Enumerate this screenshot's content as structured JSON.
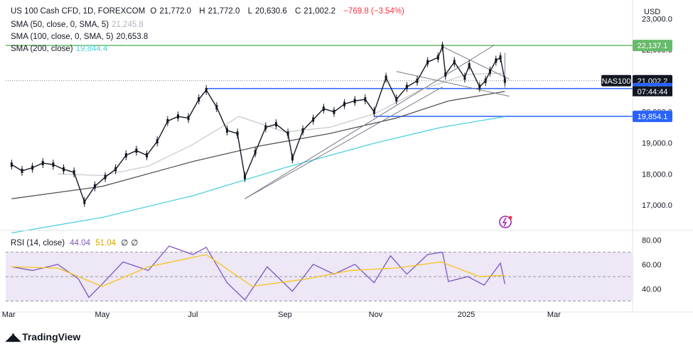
{
  "header": {
    "symbol_title": "US 100 Cash CFD, 1D, FOREXCOM",
    "ohlc": {
      "o_label": "O",
      "o": "21,772.0",
      "h_label": "H",
      "h": "21,772.0",
      "l_label": "L",
      "l": "20,630.6",
      "c_label": "C",
      "c": "21,002.2",
      "change": "−769.8 (−3.54%)"
    },
    "currency": "USD"
  },
  "indicators": [
    {
      "label": "SMA (50, close, 0, SMA, 5)",
      "value": "21,245.8",
      "color": "#b2b5be"
    },
    {
      "label": "SMA (100, close, 0, SMA, 5)",
      "value": "20,653.8",
      "color": "#555555"
    },
    {
      "label": "SMA (200, close)",
      "value": "19,844.4",
      "color": "#4dd0e1"
    }
  ],
  "rsi": {
    "label": "RSI (14, close)",
    "value": "44.04",
    "ma_value": "51.04",
    "extra1": "∅",
    "extra2": "∅",
    "line_color": "#7e57c2",
    "ma_color": "#f5c518"
  },
  "brand": {
    "name": "TradingView",
    "symbol_tag": "NAS100",
    "countdown": "07:44:44"
  },
  "colors": {
    "up": "#131722",
    "down": "#131722",
    "resistance": "#66bb6a",
    "support": "#2962ff",
    "sma200": "#4dd0e1",
    "rsi_band": "#ede7f6"
  },
  "chart_data": [
    {
      "type": "line",
      "title": "US 100 Cash CFD, 1D, FOREXCOM",
      "x_ticks": [
        "Mar",
        "May",
        "Jul",
        "Sep",
        "Nov",
        "2025",
        "Mar"
      ],
      "y_ticks": [
        "17,000.0",
        "18,000.0",
        "19,000.0",
        "20,000.0",
        "22,000.0",
        "23,000.0"
      ],
      "ylim": [
        16180,
        23600
      ],
      "price_labels": [
        {
          "value": 22137.1,
          "text": "22,137.1",
          "color": "#66bb6a"
        },
        {
          "value": 21002.2,
          "text": "21,002.2",
          "color": "#131722"
        },
        {
          "value": 20750.0,
          "text": "20,750.0",
          "color": "#2962ff"
        },
        {
          "value": 19854.1,
          "text": "19,854.1",
          "color": "#2962ff"
        }
      ],
      "horizontal_levels": [
        {
          "name": "resistance",
          "value": 22137.1
        },
        {
          "name": "support_high",
          "value": 20750.0
        },
        {
          "name": "support_low",
          "value": 19854.1
        },
        {
          "name": "last",
          "value": 21002.2
        }
      ],
      "series": [
        {
          "values": [
            {
              "d": "2024-03-01",
              "v": 18300
            },
            {
              "d": "2024-03-08",
              "v": 18100
            },
            {
              "d": "2024-03-15",
              "v": 18200
            },
            {
              "d": "2024-03-22",
              "v": 18350
            },
            {
              "d": "2024-03-29",
              "v": 18300
            },
            {
              "d": "2024-04-05",
              "v": 18150
            },
            {
              "d": "2024-04-12",
              "v": 18050
            },
            {
              "d": "2024-04-19",
              "v": 17100
            },
            {
              "d": "2024-04-26",
              "v": 17600
            },
            {
              "d": "2024-05-03",
              "v": 17900
            },
            {
              "d": "2024-05-10",
              "v": 18150
            },
            {
              "d": "2024-05-17",
              "v": 18600
            },
            {
              "d": "2024-05-24",
              "v": 18750
            },
            {
              "d": "2024-05-31",
              "v": 18600
            },
            {
              "d": "2024-06-07",
              "v": 19050
            },
            {
              "d": "2024-06-14",
              "v": 19700
            },
            {
              "d": "2024-06-21",
              "v": 19850
            },
            {
              "d": "2024-06-28",
              "v": 19800
            },
            {
              "d": "2024-07-05",
              "v": 20400
            },
            {
              "d": "2024-07-10",
              "v": 20700
            },
            {
              "d": "2024-07-17",
              "v": 20150
            },
            {
              "d": "2024-07-24",
              "v": 19400
            },
            {
              "d": "2024-07-31",
              "v": 19300
            },
            {
              "d": "2024-08-05",
              "v": 17900
            },
            {
              "d": "2024-08-12",
              "v": 18700
            },
            {
              "d": "2024-08-19",
              "v": 19500
            },
            {
              "d": "2024-08-26",
              "v": 19600
            },
            {
              "d": "2024-09-03",
              "v": 19300
            },
            {
              "d": "2024-09-06",
              "v": 18500
            },
            {
              "d": "2024-09-13",
              "v": 19400
            },
            {
              "d": "2024-09-20",
              "v": 19750
            },
            {
              "d": "2024-09-27",
              "v": 20100
            },
            {
              "d": "2024-10-04",
              "v": 20000
            },
            {
              "d": "2024-10-11",
              "v": 20250
            },
            {
              "d": "2024-10-18",
              "v": 20350
            },
            {
              "d": "2024-10-25",
              "v": 20400
            },
            {
              "d": "2024-10-31",
              "v": 20000
            },
            {
              "d": "2024-11-08",
              "v": 21100
            },
            {
              "d": "2024-11-15",
              "v": 20400
            },
            {
              "d": "2024-11-22",
              "v": 20800
            },
            {
              "d": "2024-11-29",
              "v": 21000
            },
            {
              "d": "2024-12-06",
              "v": 21600
            },
            {
              "d": "2024-12-13",
              "v": 21750
            },
            {
              "d": "2024-12-16",
              "v": 22100
            },
            {
              "d": "2024-12-18",
              "v": 21200
            },
            {
              "d": "2024-12-24",
              "v": 21600
            },
            {
              "d": "2024-12-31",
              "v": 21100
            },
            {
              "d": "2025-01-03",
              "v": 21500
            },
            {
              "d": "2025-01-10",
              "v": 20800
            },
            {
              "d": "2025-01-14",
              "v": 21000
            },
            {
              "d": "2025-01-17",
              "v": 21300
            },
            {
              "d": "2025-01-21",
              "v": 21650
            },
            {
              "d": "2025-01-24",
              "v": 21750
            },
            {
              "d": "2025-01-27",
              "v": 21002.2
            }
          ]
        }
      ],
      "sma": [
        {
          "name": "SMA (50, close, 0, SMA, 5)",
          "color": "#c9cbd1",
          "values": [
            {
              "d": "2024-04-01",
              "v": 18000
            },
            {
              "d": "2024-05-01",
              "v": 17950
            },
            {
              "d": "2024-06-01",
              "v": 18250
            },
            {
              "d": "2024-07-01",
              "v": 18950
            },
            {
              "d": "2024-08-01",
              "v": 19850
            },
            {
              "d": "2024-09-01",
              "v": 19350
            },
            {
              "d": "2024-10-01",
              "v": 19500
            },
            {
              "d": "2024-11-01",
              "v": 19950
            },
            {
              "d": "2024-12-01",
              "v": 20700
            },
            {
              "d": "2025-01-01",
              "v": 21200
            },
            {
              "d": "2025-01-27",
              "v": 21245.8
            }
          ]
        },
        {
          "name": "SMA (100, close, 0, SMA, 5)",
          "color": "#555555",
          "values": [
            {
              "d": "2024-03-01",
              "v": 17200
            },
            {
              "d": "2024-05-01",
              "v": 17600
            },
            {
              "d": "2024-07-01",
              "v": 18400
            },
            {
              "d": "2024-08-15",
              "v": 18900
            },
            {
              "d": "2024-10-01",
              "v": 19300
            },
            {
              "d": "2024-11-15",
              "v": 19800
            },
            {
              "d": "2024-12-20",
              "v": 20350
            },
            {
              "d": "2025-01-27",
              "v": 20653.8
            }
          ]
        },
        {
          "name": "SMA (200, close)",
          "color": "#4dd0e1",
          "values": [
            {
              "d": "2024-03-01",
              "v": 16100
            },
            {
              "d": "2024-05-01",
              "v": 16600
            },
            {
              "d": "2024-07-01",
              "v": 17300
            },
            {
              "d": "2024-09-01",
              "v": 18200
            },
            {
              "d": "2024-11-01",
              "v": 19000
            },
            {
              "d": "2024-12-15",
              "v": 19500
            },
            {
              "d": "2025-01-27",
              "v": 19844.4
            }
          ]
        }
      ],
      "trendlines": [
        {
          "from": {
            "d": "2024-08-05",
            "v": 17200
          },
          "to": {
            "d": "2025-01-20",
            "v": 22150
          }
        },
        {
          "from": {
            "d": "2024-08-05",
            "v": 17200
          },
          "to": {
            "d": "2024-12-16",
            "v": 20800
          }
        },
        {
          "from": {
            "d": "2024-12-16",
            "v": 22100
          },
          "to": {
            "d": "2025-01-30",
            "v": 21050
          }
        },
        {
          "from": {
            "d": "2024-11-15",
            "v": 21300
          },
          "to": {
            "d": "2025-01-30",
            "v": 20500
          }
        },
        {
          "from": {
            "d": "2025-01-27",
            "v": 20750
          },
          "to": {
            "d": "2025-01-27",
            "v": 21900
          }
        }
      ]
    },
    {
      "type": "line",
      "title": "RSI (14, close)",
      "ylim": [
        28,
        86
      ],
      "y_ticks": [
        "80.00",
        "60.00",
        "40.00"
      ],
      "bands": [
        30,
        70
      ],
      "midline": 50,
      "series": [
        {
          "name": "RSI",
          "color": "#7e57c2",
          "values": [
            {
              "d": "2024-03-01",
              "v": 58
            },
            {
              "d": "2024-03-15",
              "v": 55
            },
            {
              "d": "2024-04-01",
              "v": 60
            },
            {
              "d": "2024-04-15",
              "v": 48
            },
            {
              "d": "2024-04-22",
              "v": 33
            },
            {
              "d": "2024-05-01",
              "v": 44
            },
            {
              "d": "2024-05-15",
              "v": 62
            },
            {
              "d": "2024-06-01",
              "v": 55
            },
            {
              "d": "2024-06-15",
              "v": 75
            },
            {
              "d": "2024-07-01",
              "v": 68
            },
            {
              "d": "2024-07-10",
              "v": 74
            },
            {
              "d": "2024-07-24",
              "v": 45
            },
            {
              "d": "2024-08-05",
              "v": 31
            },
            {
              "d": "2024-08-20",
              "v": 58
            },
            {
              "d": "2024-09-06",
              "v": 38
            },
            {
              "d": "2024-09-20",
              "v": 60
            },
            {
              "d": "2024-10-04",
              "v": 52
            },
            {
              "d": "2024-10-18",
              "v": 60
            },
            {
              "d": "2024-10-31",
              "v": 45
            },
            {
              "d": "2024-11-11",
              "v": 67
            },
            {
              "d": "2024-11-22",
              "v": 52
            },
            {
              "d": "2024-12-06",
              "v": 68
            },
            {
              "d": "2024-12-16",
              "v": 70
            },
            {
              "d": "2024-12-20",
              "v": 46
            },
            {
              "d": "2025-01-02",
              "v": 50
            },
            {
              "d": "2025-01-13",
              "v": 43
            },
            {
              "d": "2025-01-24",
              "v": 61
            },
            {
              "d": "2025-01-27",
              "v": 44.04
            }
          ]
        },
        {
          "name": "RSI-based MA",
          "color": "#f5c518",
          "values": [
            {
              "d": "2024-03-01",
              "v": 58
            },
            {
              "d": "2024-04-01",
              "v": 57
            },
            {
              "d": "2024-05-01",
              "v": 42
            },
            {
              "d": "2024-06-01",
              "v": 58
            },
            {
              "d": "2024-07-10",
              "v": 68
            },
            {
              "d": "2024-08-10",
              "v": 42
            },
            {
              "d": "2024-09-15",
              "v": 48
            },
            {
              "d": "2024-10-15",
              "v": 55
            },
            {
              "d": "2024-11-15",
              "v": 57
            },
            {
              "d": "2024-12-15",
              "v": 62
            },
            {
              "d": "2025-01-10",
              "v": 50
            },
            {
              "d": "2025-01-27",
              "v": 51.04
            }
          ]
        }
      ]
    }
  ]
}
